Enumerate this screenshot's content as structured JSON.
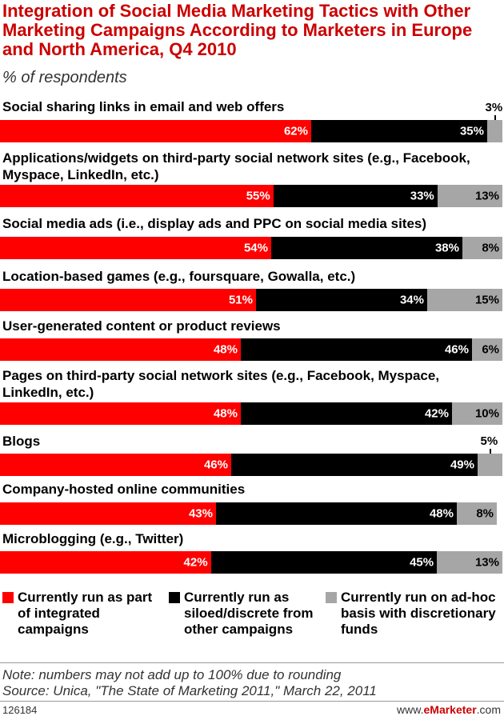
{
  "chart_data": {
    "type": "bar",
    "orientation": "horizontal",
    "stacked": true,
    "title": "Integration of Social Media Marketing Tactics with Other Marketing Campaigns According to Marketers in Europe and North America, Q4 2010",
    "subtitle": "% of respondents",
    "categories": [
      "Social sharing links in email and web offers",
      "Applications/widgets on third-party social network sites (e.g., Facebook, Myspace, LinkedIn, etc.)",
      "Social media ads (i.e., display ads and PPC on social media sites)",
      "Location-based games (e.g., foursquare, Gowalla, etc.)",
      "User-generated content or product reviews",
      "Pages on third-party social network sites (e.g., Facebook, Myspace, LinkedIn, etc.)",
      "Blogs",
      "Company-hosted online communities",
      "Microblogging (e.g., Twitter)"
    ],
    "series": [
      {
        "name": "Currently run as part of integrated campaigns",
        "color": "#ff0000",
        "values": [
          62,
          55,
          54,
          51,
          48,
          48,
          46,
          43,
          42
        ]
      },
      {
        "name": "Currently run as siloed/discrete from other campaigns",
        "color": "#000000",
        "values": [
          35,
          33,
          38,
          34,
          46,
          42,
          49,
          48,
          45
        ]
      },
      {
        "name": "Currently run on ad-hoc basis with discretionary funds",
        "color": "#a6a6a6",
        "values": [
          3,
          13,
          8,
          15,
          6,
          10,
          5,
          8,
          13
        ]
      }
    ],
    "legend_position": "bottom",
    "xlim": [
      0,
      100
    ]
  },
  "note": "Note: numbers may not add up to 100% due to rounding",
  "source": "Source: Unica, \"The State of Marketing 2011,\" March 22, 2011",
  "chart_id": "126184",
  "brand": {
    "prefix": "www.",
    "name": "eMarketer",
    "suffix": ".com"
  }
}
